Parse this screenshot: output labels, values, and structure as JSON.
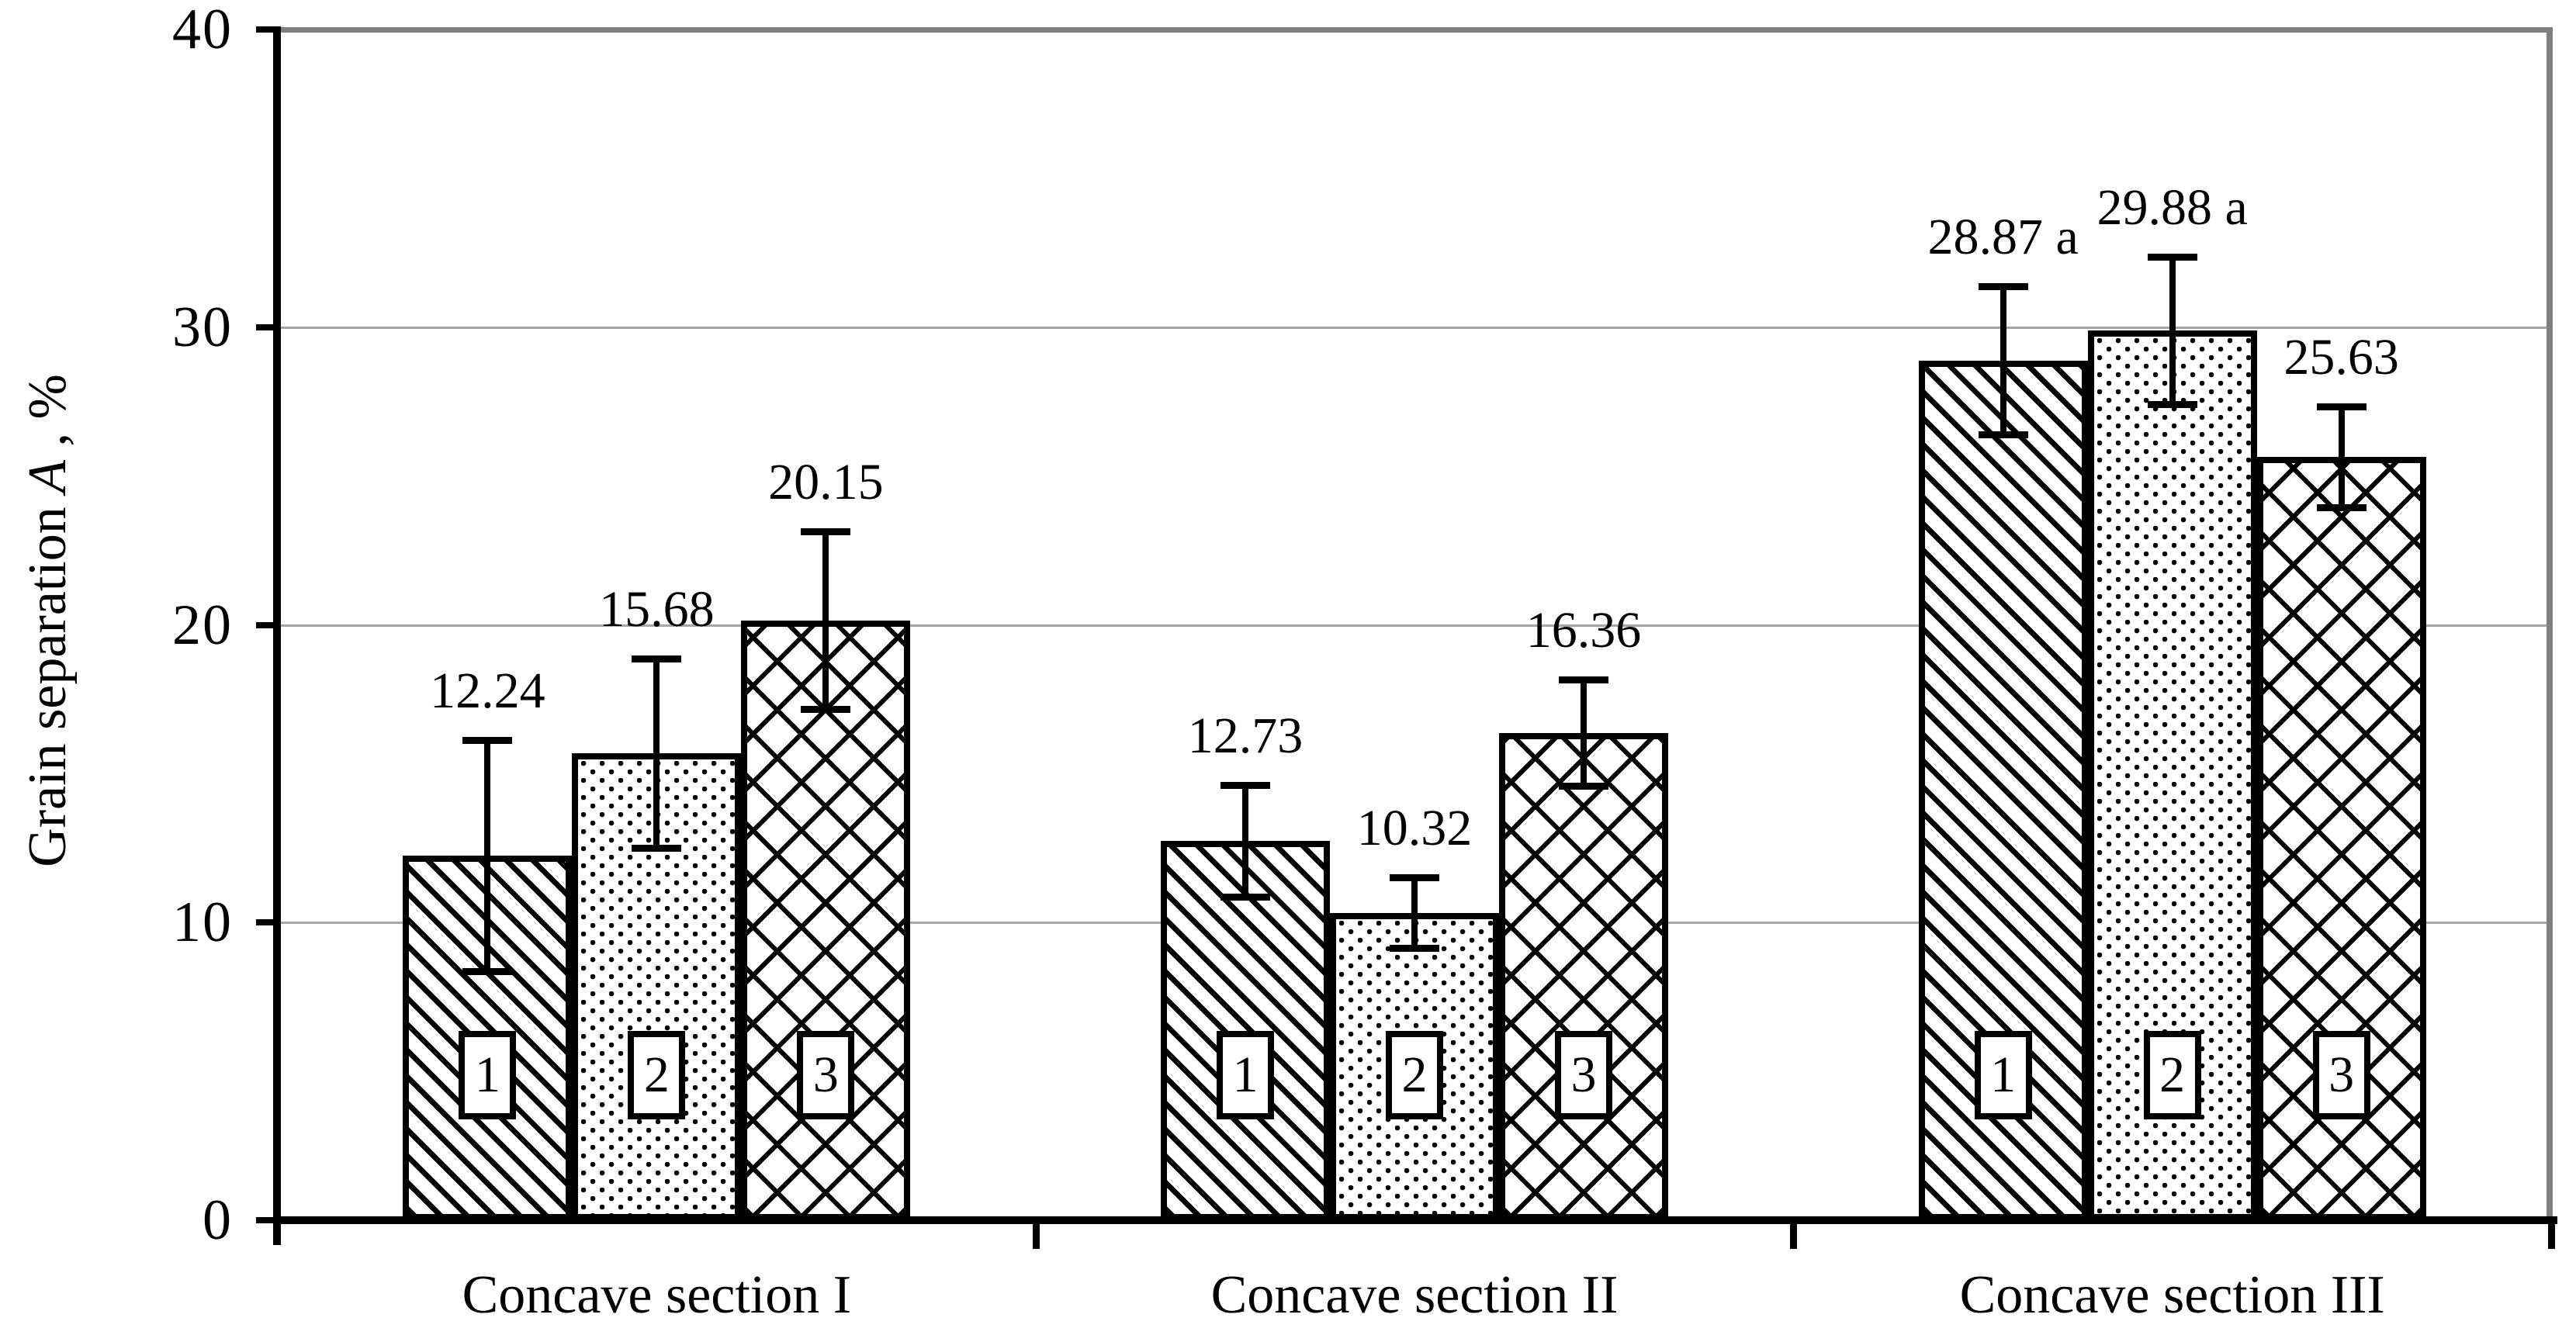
{
  "chart_data": {
    "type": "bar",
    "title": "",
    "ylabel_prefix": "Grain separation",
    "ylabel_var": "A",
    "ylabel_suffix": " , %",
    "ylim": [
      0,
      40
    ],
    "yticks": [
      0,
      10,
      20,
      30,
      40
    ],
    "grid": "horizontal-major",
    "legend_position": "none",
    "categories": [
      "Concave section I",
      "Concave section II",
      "Concave section III"
    ],
    "bar_marker_labels": [
      "1",
      "2",
      "3"
    ],
    "series": [
      {
        "name": "1",
        "pattern": "diagonal-hatch",
        "values": [
          12.24,
          12.73,
          28.87
        ],
        "errors": [
          4.0,
          2.0,
          2.6
        ],
        "labels": [
          "12.24",
          "12.73",
          "28.87 a"
        ]
      },
      {
        "name": "2",
        "pattern": "dots",
        "values": [
          15.68,
          10.32,
          29.88
        ],
        "errors": [
          3.3,
          1.3,
          2.6
        ],
        "labels": [
          "15.68",
          "10.32",
          "29.88 a"
        ]
      },
      {
        "name": "3",
        "pattern": "diamond-crosshatch",
        "values": [
          20.15,
          16.36,
          25.63
        ],
        "errors": [
          3.1,
          1.9,
          1.8
        ],
        "labels": [
          "20.15",
          "16.36",
          "25.63"
        ]
      }
    ],
    "colors": {
      "background": "#ffffff",
      "bar_fill": "#ffffff",
      "bar_border": "#000000",
      "axis": "#000000",
      "grid_major": "#a6a6a6",
      "grid_top": "#808080",
      "plot_right_border": "#808080",
      "text": "#000000"
    }
  }
}
